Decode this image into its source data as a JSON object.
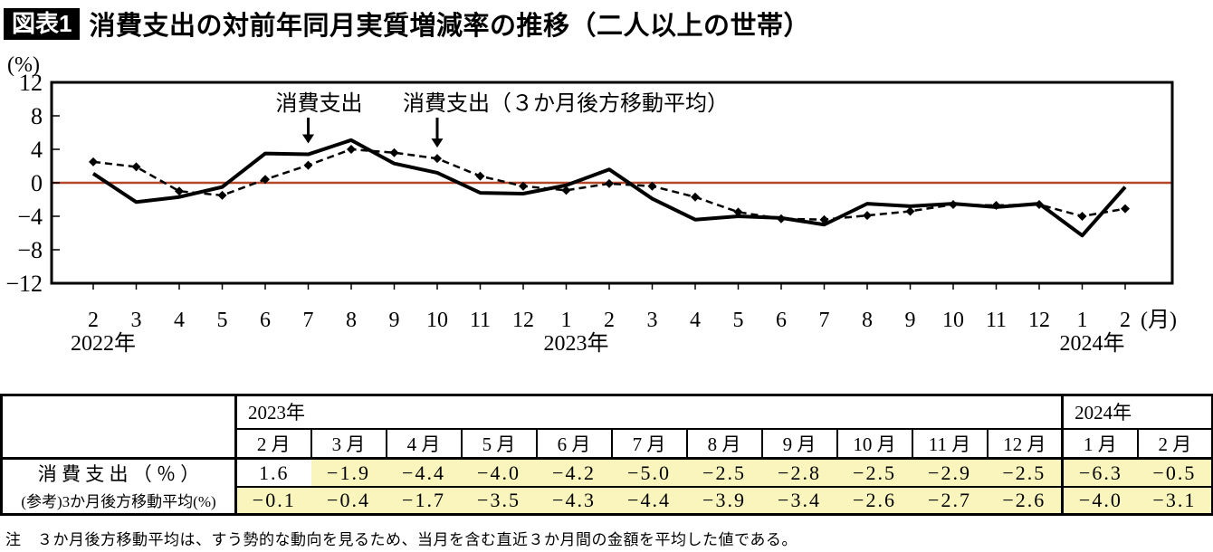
{
  "title": {
    "badge": "図表1",
    "text": "消費支出の対前年同月実質増減率の推移（二人以上の世帯）"
  },
  "chart_data": {
    "type": "line",
    "ylabel_unit": "(%)",
    "xlabel_unit": "(月)",
    "ylim": [
      -12,
      12
    ],
    "yticks": [
      "12",
      "8",
      "4",
      "0",
      "-4",
      "-8",
      "-12"
    ],
    "months": [
      "2",
      "3",
      "4",
      "5",
      "6",
      "7",
      "8",
      "9",
      "10",
      "11",
      "12",
      "1",
      "2",
      "3",
      "4",
      "5",
      "6",
      "7",
      "8",
      "9",
      "10",
      "11",
      "12",
      "1",
      "2"
    ],
    "year_labels": [
      {
        "text": "2022年",
        "month_index": 0
      },
      {
        "text": "2023年",
        "month_index": 11
      },
      {
        "text": "2024年",
        "month_index": 23
      }
    ],
    "series": [
      {
        "name": "消費支出",
        "style": "solid",
        "values": [
          1.1,
          -2.3,
          -1.7,
          -0.5,
          3.5,
          3.4,
          5.1,
          2.3,
          1.2,
          -1.2,
          -1.3,
          -0.3,
          1.6,
          -1.9,
          -4.4,
          -4.0,
          -4.2,
          -5.0,
          -2.5,
          -2.8,
          -2.5,
          -2.9,
          -2.5,
          -6.3,
          -0.5
        ]
      },
      {
        "name": "消費支出（３か月後方移動平均）",
        "style": "dashed-diamond",
        "values": [
          2.5,
          1.9,
          -1.0,
          -1.5,
          0.4,
          2.1,
          4.0,
          3.6,
          2.9,
          0.8,
          -0.4,
          -0.9,
          -0.1,
          -0.4,
          -1.7,
          -3.5,
          -4.3,
          -4.4,
          -3.9,
          -3.4,
          -2.6,
          -2.7,
          -2.6,
          -4.0,
          -3.1
        ]
      }
    ],
    "annotations": [
      {
        "text": "消費支出",
        "month_index": 5,
        "series_index": 0,
        "align": "middle"
      },
      {
        "text": "消費支出（３か月後方移動平均）",
        "month_index": 8,
        "series_index": 1,
        "align": "start"
      }
    ],
    "zero_line_color": "#b5472a",
    "line_color": "#000000",
    "grid": false,
    "legend_position": "inline-annotations"
  },
  "table": {
    "year_headers": [
      {
        "text": "2023年",
        "colspan": 11
      },
      {
        "text": "2024年",
        "colspan": 2
      }
    ],
    "month_columns": [
      "2 月",
      "3 月",
      "4 月",
      "5 月",
      "6 月",
      "7 月",
      "8 月",
      "9 月",
      "10 月",
      "11 月",
      "12 月",
      "1 月",
      "2 月"
    ],
    "rows": [
      {
        "label": "消 費 支 出 （ ％ ）",
        "values": [
          "1.6",
          "-1.9",
          "-4.4",
          "-4.0",
          "-4.2",
          "-5.0",
          "-2.5",
          "-2.8",
          "-2.5",
          "-2.9",
          "-2.5",
          "-6.3",
          "-0.5"
        ]
      },
      {
        "label": "(参考)3か月後方移動平均(%)",
        "values": [
          "-0.1",
          "-0.4",
          "-1.7",
          "-3.5",
          "-4.3",
          "-4.4",
          "-3.9",
          "-3.4",
          "-2.6",
          "-2.7",
          "-2.6",
          "-4.0",
          "-3.1"
        ]
      }
    ],
    "highlight_color": "#f9f5bd"
  },
  "note": "注　３か月後方移動平均は、すう勢的な動向を見るため、当月を含む直近３か月間の金額を平均した値である。"
}
